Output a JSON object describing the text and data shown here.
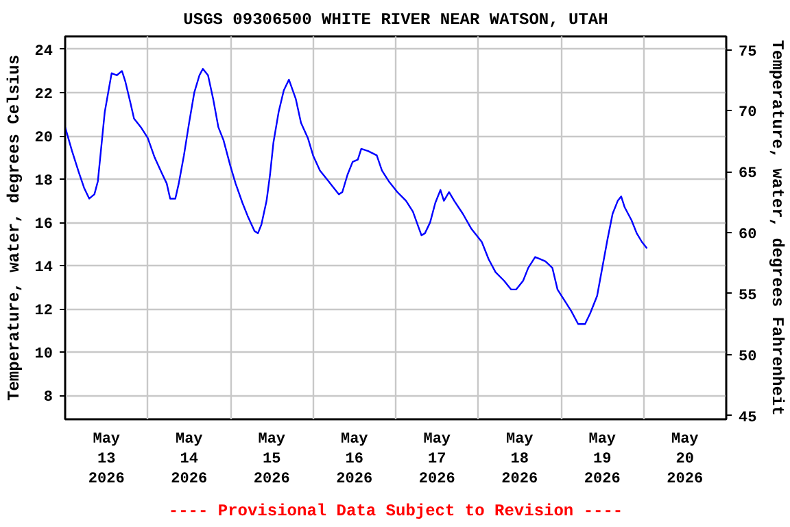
{
  "chart_data": {
    "type": "line",
    "title": "USGS 09306500 WHITE RIVER NEAR WATSON, UTAH",
    "ylabel": "Temperature, water, degrees Celsius",
    "y2label": "Temperature, water, degrees Fahrenheit",
    "annotations": [
      "---- Provisional Data Subject to Revision ----"
    ],
    "xlim": [
      "2026-05-13T00:00",
      "2026-05-21T00:00"
    ],
    "xticks": [
      {
        "value": "2026-05-13T00:00",
        "label": null
      },
      {
        "value": "2026-05-13T12:00",
        "label": "May\n13\n2026"
      },
      {
        "value": "2026-05-14T00:00",
        "label": null
      },
      {
        "value": "2026-05-14T12:00",
        "label": "May\n14\n2026"
      },
      {
        "value": "2026-05-15T00:00",
        "label": null
      },
      {
        "value": "2026-05-15T12:00",
        "label": "May\n15\n2026"
      },
      {
        "value": "2026-05-16T00:00",
        "label": null
      },
      {
        "value": "2026-05-16T12:00",
        "label": "May\n16\n2026"
      },
      {
        "value": "2026-05-17T00:00",
        "label": null
      },
      {
        "value": "2026-05-17T12:00",
        "label": "May\n17\n2026"
      },
      {
        "value": "2026-05-18T00:00",
        "label": null
      },
      {
        "value": "2026-05-18T12:00",
        "label": "May\n18\n2026"
      },
      {
        "value": "2026-05-19T00:00",
        "label": null
      },
      {
        "value": "2026-05-19T12:00",
        "label": "May\n19\n2026"
      },
      {
        "value": "2026-05-20T00:00",
        "label": null
      },
      {
        "value": "2026-05-20T12:00",
        "label": "May\n20\n2026"
      },
      {
        "value": "2026-05-21T00:00",
        "label": null
      }
    ],
    "ylim": [
      6.9,
      24.6
    ],
    "yticks": [
      8,
      10,
      12,
      14,
      16,
      18,
      20,
      22,
      24
    ],
    "y2lim": [
      44.7,
      76.1
    ],
    "y2ticks": [
      45,
      50,
      55,
      60,
      65,
      70,
      75
    ],
    "grid": true,
    "series": [
      {
        "color": "#0000ff",
        "x": [
          "2026-05-13T00:00",
          "2026-05-13T02:00",
          "2026-05-13T04:00",
          "2026-05-13T05:30",
          "2026-05-13T07:00",
          "2026-05-13T08:30",
          "2026-05-13T09:30",
          "2026-05-13T10:30",
          "2026-05-13T11:30",
          "2026-05-13T12:30",
          "2026-05-13T13:30",
          "2026-05-13T15:00",
          "2026-05-13T16:30",
          "2026-05-13T17:30",
          "2026-05-13T19:00",
          "2026-05-13T20:00",
          "2026-05-13T22:00",
          "2026-05-14T00:00",
          "2026-05-14T02:00",
          "2026-05-14T04:00",
          "2026-05-14T05:30",
          "2026-05-14T06:30",
          "2026-05-14T08:00",
          "2026-05-14T09:00",
          "2026-05-14T10:30",
          "2026-05-14T12:00",
          "2026-05-14T13:30",
          "2026-05-14T15:00",
          "2026-05-14T16:00",
          "2026-05-14T17:30",
          "2026-05-14T19:00",
          "2026-05-14T20:30",
          "2026-05-14T22:00",
          "2026-05-15T00:00",
          "2026-05-15T01:30",
          "2026-05-15T03:30",
          "2026-05-15T05:00",
          "2026-05-15T07:00",
          "2026-05-15T08:00",
          "2026-05-15T09:00",
          "2026-05-15T10:30",
          "2026-05-15T11:30",
          "2026-05-15T12:30",
          "2026-05-15T14:00",
          "2026-05-15T15:30",
          "2026-05-15T17:00",
          "2026-05-15T19:00",
          "2026-05-15T20:30",
          "2026-05-15T22:30",
          "2026-05-16T00:00",
          "2026-05-16T02:00",
          "2026-05-16T04:00",
          "2026-05-16T06:00",
          "2026-05-16T07:30",
          "2026-05-16T08:30",
          "2026-05-16T10:00",
          "2026-05-16T11:30",
          "2026-05-16T13:00",
          "2026-05-16T14:00",
          "2026-05-16T16:00",
          "2026-05-16T18:30",
          "2026-05-16T20:00",
          "2026-05-16T22:00",
          "2026-05-17T00:30",
          "2026-05-17T03:00",
          "2026-05-17T05:00",
          "2026-05-17T07:30",
          "2026-05-17T08:30",
          "2026-05-17T10:00",
          "2026-05-17T11:30",
          "2026-05-17T13:00",
          "2026-05-17T14:00",
          "2026-05-17T15:30",
          "2026-05-17T17:00",
          "2026-05-17T19:30",
          "2026-05-17T22:00",
          "2026-05-18T01:00",
          "2026-05-18T03:00",
          "2026-05-18T05:00",
          "2026-05-18T07:30",
          "2026-05-18T09:30",
          "2026-05-18T11:00",
          "2026-05-18T13:00",
          "2026-05-18T14:30",
          "2026-05-18T16:30",
          "2026-05-18T18:00",
          "2026-05-18T19:30",
          "2026-05-18T21:30",
          "2026-05-18T23:00",
          "2026-05-19T01:00",
          "2026-05-19T03:00",
          "2026-05-19T05:00",
          "2026-05-19T07:00",
          "2026-05-19T08:30",
          "2026-05-19T10:30",
          "2026-05-19T12:00",
          "2026-05-19T13:30",
          "2026-05-19T15:00",
          "2026-05-19T16:30",
          "2026-05-19T17:30",
          "2026-05-19T18:30",
          "2026-05-19T20:30",
          "2026-05-19T22:00",
          "2026-05-19T23:30",
          "2026-05-20T01:00"
        ],
        "values": [
          20.4,
          19.3,
          18.3,
          17.6,
          17.1,
          17.3,
          17.9,
          19.5,
          21.1,
          22.0,
          22.9,
          22.8,
          23.0,
          22.5,
          21.5,
          20.8,
          20.4,
          19.9,
          19.0,
          18.3,
          17.8,
          17.1,
          17.1,
          17.8,
          19.1,
          20.6,
          22.0,
          22.8,
          23.1,
          22.8,
          21.7,
          20.4,
          19.8,
          18.6,
          17.8,
          16.9,
          16.3,
          15.6,
          15.5,
          15.9,
          17.0,
          18.2,
          19.7,
          21.1,
          22.1,
          22.6,
          21.7,
          20.6,
          19.9,
          19.1,
          18.4,
          18.0,
          17.6,
          17.3,
          17.4,
          18.2,
          18.8,
          18.9,
          19.4,
          19.3,
          19.1,
          18.4,
          17.9,
          17.4,
          17.0,
          16.5,
          15.4,
          15.5,
          16.0,
          16.9,
          17.5,
          17.0,
          17.4,
          17.0,
          16.4,
          15.7,
          15.1,
          14.3,
          13.7,
          13.3,
          12.9,
          12.9,
          13.3,
          13.9,
          14.4,
          14.3,
          14.2,
          13.9,
          12.9,
          12.4,
          11.9,
          11.3,
          11.3,
          11.8,
          12.6,
          13.9,
          15.2,
          16.4,
          17.0,
          17.2,
          16.7,
          16.1,
          15.5,
          15.1,
          14.8
        ]
      }
    ]
  }
}
